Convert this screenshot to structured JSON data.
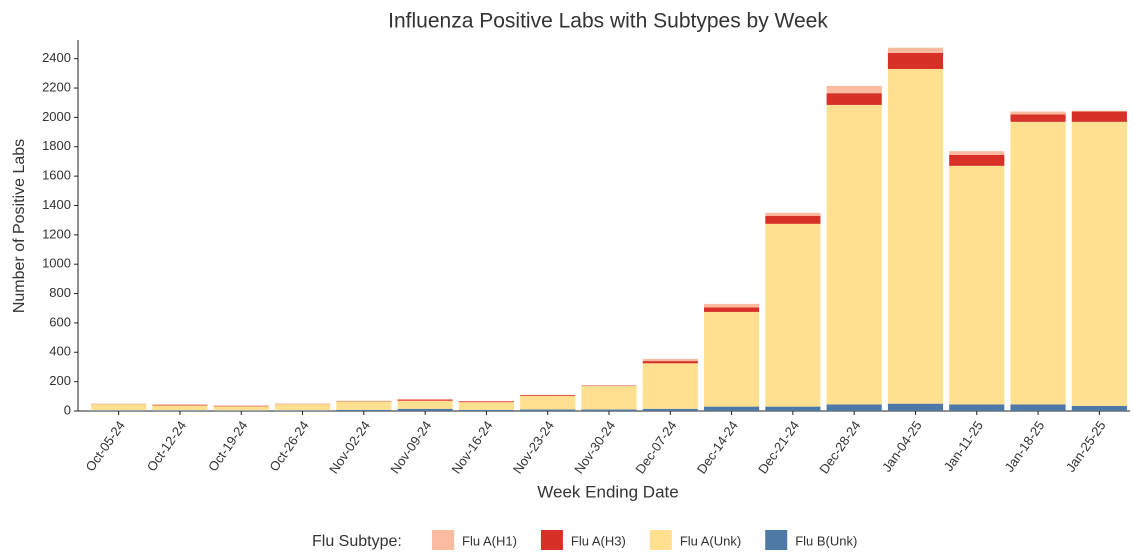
{
  "chart_data": {
    "type": "stacked_bar",
    "title": "Influenza Positive Labs with Subtypes by Week",
    "x_label": "Week Ending Date",
    "y_label": "Number of Positive Labs",
    "legend_title": "Flu Subtype:",
    "categories": [
      "Oct-05-24",
      "Oct-12-24",
      "Oct-19-24",
      "Oct-26-24",
      "Nov-02-24",
      "Nov-09-24",
      "Nov-16-24",
      "Nov-23-24",
      "Nov-30-24",
      "Dec-07-24",
      "Dec-14-24",
      "Dec-21-24",
      "Dec-28-24",
      "Jan-04-25",
      "Jan-11-25",
      "Jan-18-25",
      "Jan-25-25"
    ],
    "series": [
      {
        "name": "Flu B(Unk)",
        "color": "#4e79a7",
        "values": [
          5,
          5,
          4,
          5,
          8,
          15,
          8,
          10,
          10,
          15,
          30,
          30,
          45,
          50,
          45,
          45,
          35
        ]
      },
      {
        "name": "Flu A(Unk)",
        "color": "#fee090",
        "values": [
          42,
          33,
          28,
          42,
          58,
          55,
          52,
          92,
          160,
          310,
          645,
          1245,
          2040,
          2280,
          1625,
          1925,
          1935
        ]
      },
      {
        "name": "Flu A(H3)",
        "color": "#d73027",
        "values": [
          1,
          5,
          4,
          2,
          2,
          8,
          6,
          6,
          3,
          15,
          30,
          55,
          80,
          110,
          75,
          50,
          70
        ]
      },
      {
        "name": "Flu A(H1)",
        "color": "#fcbba1",
        "values": [
          2,
          2,
          2,
          1,
          2,
          2,
          2,
          2,
          2,
          15,
          25,
          20,
          50,
          35,
          25,
          20,
          5
        ]
      }
    ],
    "legend_order": [
      3,
      2,
      1,
      0
    ],
    "ylim": [
      0,
      2500
    ],
    "yticks": [
      0,
      200,
      400,
      600,
      800,
      1000,
      1200,
      1400,
      1600,
      1800,
      2000,
      2200,
      2400
    ],
    "grid": false
  }
}
